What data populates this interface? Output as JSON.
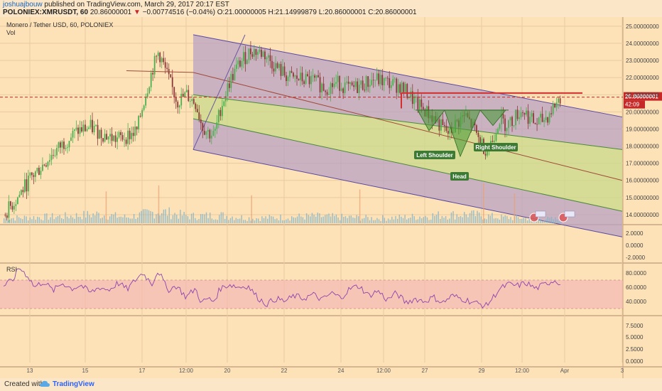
{
  "header": {
    "user": "joshuajbouw",
    "published": " published on TradingView.com, March 29, 2017 20:17 EST",
    "symbol": "POLONIEX:XMRUSDT, 60",
    "price": "20.86000001",
    "change": "−0.00774516 (−0.04%)",
    "ohlc": {
      "o": "O:21.00000005",
      "h": "H:21.14999879",
      "l": "L:20.86000001",
      "c": "C:20.86000001"
    }
  },
  "legend": {
    "title": "Monero / Tether USD, 60, POLONIEX",
    "vol": "Vol"
  },
  "rsi_label": "RSI",
  "footer": {
    "created": "Created with",
    "brand": "TradingView"
  },
  "colors": {
    "background": "#fde2b8",
    "up": "#4caf50",
    "down": "#8b3a3a",
    "channel_purple": "#b9a2c3",
    "channel_green": "#c8d98a",
    "resistance": "#d32f2f",
    "rsi_line": "#8e44ad",
    "rsi_band": "#f3b3b3"
  },
  "chart_data": {
    "type": "candlestick",
    "symbol": "XMRUSDT",
    "interval": "60",
    "x_ticks": [
      "13",
      "15",
      "17",
      "12:00",
      "20",
      "22",
      "24",
      "12:00",
      "27",
      "29",
      "12:00",
      "Apr",
      "3"
    ],
    "price_axis": {
      "ticks": [
        "25.00000000",
        "24.00000000",
        "23.00000000",
        "22.00000000",
        "21.00000000",
        "20.00000000",
        "19.00000000",
        "18.00000000",
        "17.00000000",
        "16.00000000",
        "15.00000000",
        "14.00000000"
      ],
      "range": [
        13.5,
        25.2
      ]
    },
    "last_price_label": "20.86000001",
    "countdown_label": "42:09",
    "close_trend": [
      [
        0,
        14.0
      ],
      [
        8,
        14.9
      ],
      [
        16,
        16.0
      ],
      [
        24,
        16.8
      ],
      [
        32,
        17.6
      ],
      [
        40,
        18.3
      ],
      [
        48,
        18.9
      ],
      [
        56,
        19.1
      ],
      [
        64,
        18.7
      ],
      [
        72,
        18.4
      ],
      [
        80,
        18.6
      ],
      [
        86,
        18.9
      ],
      [
        90,
        20.5
      ],
      [
        96,
        22.5
      ],
      [
        100,
        23.5
      ],
      [
        106,
        22.0
      ],
      [
        112,
        20.6
      ],
      [
        118,
        21.0
      ],
      [
        124,
        20.5
      ],
      [
        128,
        19.2
      ],
      [
        132,
        18.8
      ],
      [
        136,
        18.6
      ],
      [
        140,
        20.2
      ],
      [
        146,
        21.8
      ],
      [
        152,
        22.8
      ],
      [
        160,
        23.6
      ],
      [
        168,
        23.4
      ],
      [
        176,
        22.6
      ],
      [
        184,
        22.0
      ],
      [
        192,
        21.9
      ],
      [
        200,
        21.8
      ],
      [
        208,
        21.4
      ],
      [
        216,
        21.7
      ],
      [
        224,
        21.3
      ],
      [
        232,
        21.6
      ],
      [
        240,
        21.9
      ],
      [
        248,
        21.7
      ],
      [
        256,
        21.5
      ],
      [
        262,
        21.0
      ],
      [
        266,
        20.5
      ],
      [
        272,
        20.1
      ],
      [
        278,
        19.6
      ],
      [
        284,
        19.0
      ],
      [
        288,
        18.7
      ],
      [
        292,
        19.3
      ],
      [
        298,
        19.8
      ],
      [
        304,
        19.0
      ],
      [
        308,
        18.2
      ],
      [
        312,
        17.8
      ],
      [
        316,
        18.4
      ],
      [
        320,
        19.6
      ],
      [
        324,
        19.3
      ],
      [
        328,
        19.4
      ],
      [
        332,
        19.9
      ],
      [
        336,
        20.1
      ],
      [
        340,
        19.6
      ],
      [
        344,
        19.3
      ],
      [
        348,
        19.5
      ],
      [
        352,
        19.8
      ],
      [
        356,
        20.4
      ],
      [
        360,
        20.86
      ]
    ],
    "volume_trend": [
      [
        0,
        0.25
      ],
      [
        20,
        0.3
      ],
      [
        40,
        0.35
      ],
      [
        60,
        0.45
      ],
      [
        80,
        0.3
      ],
      [
        100,
        0.6
      ],
      [
        120,
        0.35
      ],
      [
        140,
        0.4
      ],
      [
        160,
        0.25
      ],
      [
        180,
        0.3
      ],
      [
        200,
        0.35
      ],
      [
        220,
        0.3
      ],
      [
        240,
        0.25
      ],
      [
        260,
        0.3
      ],
      [
        280,
        0.4
      ],
      [
        300,
        0.45
      ],
      [
        320,
        0.3
      ],
      [
        340,
        0.25
      ],
      [
        360,
        0.2
      ]
    ],
    "resistance_level": 21.1,
    "pattern": {
      "name": "Inverse Head and Shoulders",
      "labels": [
        "Left Shoulder",
        "Head",
        "Right Shoulder"
      ],
      "neckline": 20.1,
      "left_shoulder_low": 18.9,
      "head_low": 17.4,
      "right_shoulder_low": 19.2
    },
    "channel": {
      "upper_start": 24.5,
      "upper_end": 19.7,
      "median_start": 22.3,
      "median_end": 16.0,
      "inner_upper_start": 21.0,
      "inner_upper_end": 17.8,
      "inner_lower_start": 19.6,
      "inner_lower_end": 14.2,
      "lower_start": 17.8,
      "lower_end": 12.7
    },
    "indicator_1": {
      "ticks": [
        "2.0000",
        "0.0000",
        "-2.0000"
      ]
    },
    "indicator_3": {
      "ticks": [
        "7.5000",
        "5.0000",
        "2.5000",
        "0.0000"
      ]
    },
    "rsi": {
      "ticks": [
        "80.0000",
        "60.0000",
        "40.0000"
      ],
      "band": [
        30,
        70
      ],
      "range": [
        22,
        92
      ],
      "series": [
        [
          0,
          62
        ],
        [
          6,
          70
        ],
        [
          10,
          88
        ],
        [
          16,
          75
        ],
        [
          20,
          60
        ],
        [
          26,
          68
        ],
        [
          32,
          55
        ],
        [
          38,
          66
        ],
        [
          44,
          58
        ],
        [
          50,
          63
        ],
        [
          56,
          52
        ],
        [
          62,
          60
        ],
        [
          68,
          56
        ],
        [
          74,
          66
        ],
        [
          80,
          57
        ],
        [
          86,
          72
        ],
        [
          90,
          80
        ],
        [
          96,
          65
        ],
        [
          100,
          84
        ],
        [
          106,
          56
        ],
        [
          112,
          62
        ],
        [
          118,
          46
        ],
        [
          124,
          58
        ],
        [
          128,
          38
        ],
        [
          132,
          44
        ],
        [
          136,
          40
        ],
        [
          140,
          58
        ],
        [
          146,
          64
        ],
        [
          152,
          60
        ],
        [
          158,
          62
        ],
        [
          164,
          46
        ],
        [
          170,
          36
        ],
        [
          176,
          44
        ],
        [
          182,
          40
        ],
        [
          188,
          48
        ],
        [
          194,
          44
        ],
        [
          200,
          50
        ],
        [
          206,
          42
        ],
        [
          212,
          52
        ],
        [
          218,
          45
        ],
        [
          224,
          58
        ],
        [
          230,
          62
        ],
        [
          236,
          48
        ],
        [
          242,
          55
        ],
        [
          248,
          42
        ],
        [
          254,
          52
        ],
        [
          260,
          38
        ],
        [
          266,
          44
        ],
        [
          272,
          40
        ],
        [
          278,
          46
        ],
        [
          284,
          38
        ],
        [
          290,
          48
        ],
        [
          296,
          44
        ],
        [
          302,
          40
        ],
        [
          308,
          36
        ],
        [
          312,
          34
        ],
        [
          316,
          44
        ],
        [
          320,
          56
        ],
        [
          326,
          64
        ],
        [
          332,
          62
        ],
        [
          338,
          66
        ],
        [
          344,
          58
        ],
        [
          350,
          64
        ],
        [
          356,
          70
        ],
        [
          360,
          66
        ]
      ]
    }
  }
}
